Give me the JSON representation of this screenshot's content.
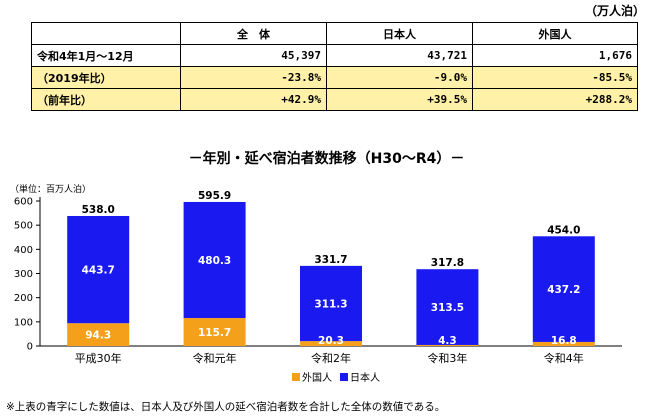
{
  "table": {
    "unit": "（万人泊）",
    "headers": [
      "",
      "全　体",
      "日本人",
      "外国人"
    ],
    "rows": [
      {
        "label": "令和4年1月～12月",
        "total": "45,397",
        "japanese": "43,721",
        "foreign": "1,676",
        "highlight": false
      },
      {
        "label": "（2019年比）",
        "total": "-23.8%",
        "japanese": "-9.0%",
        "foreign": "-85.5%",
        "highlight": true
      },
      {
        "label": "（前年比）",
        "total": "+42.9%",
        "japanese": "+39.5%",
        "foreign": "+288.2%",
        "highlight": true
      }
    ]
  },
  "chart_title": "－年別・延べ宿泊者数推移（H30～R4）－",
  "footnote": "※上表の青字にした数値は、日本人及び外国人の延べ宿泊者数を合計した全体の数値である。",
  "colors": {
    "japanese": "#1a1af0",
    "foreign": "#f5a01a",
    "highlight_row": "#fff2a8"
  },
  "chart_data": {
    "type": "bar",
    "stacked": true,
    "unit_label": "（単位：百万人泊）",
    "categories": [
      "平成30年",
      "令和元年",
      "令和2年",
      "令和3年",
      "令和4年"
    ],
    "series": [
      {
        "name": "外国人",
        "values": [
          94.3,
          115.7,
          20.3,
          4.3,
          16.8
        ],
        "labels": [
          "94.3",
          "115.7",
          "20.3",
          "4.3",
          "16.8"
        ]
      },
      {
        "name": "日本人",
        "values": [
          443.7,
          480.3,
          311.3,
          313.5,
          437.2
        ],
        "labels": [
          "443.7",
          "480.3",
          "311.3",
          "313.5",
          "437.2"
        ]
      }
    ],
    "totals": [
      538.0,
      595.9,
      331.7,
      317.8,
      454.0
    ],
    "total_labels": [
      "538.0",
      "595.9",
      "331.7",
      "317.8",
      "454.0"
    ],
    "yticks": [
      0,
      100,
      200,
      300,
      400,
      500,
      600
    ],
    "ylim": [
      0,
      600
    ],
    "legend_position": "bottom"
  }
}
